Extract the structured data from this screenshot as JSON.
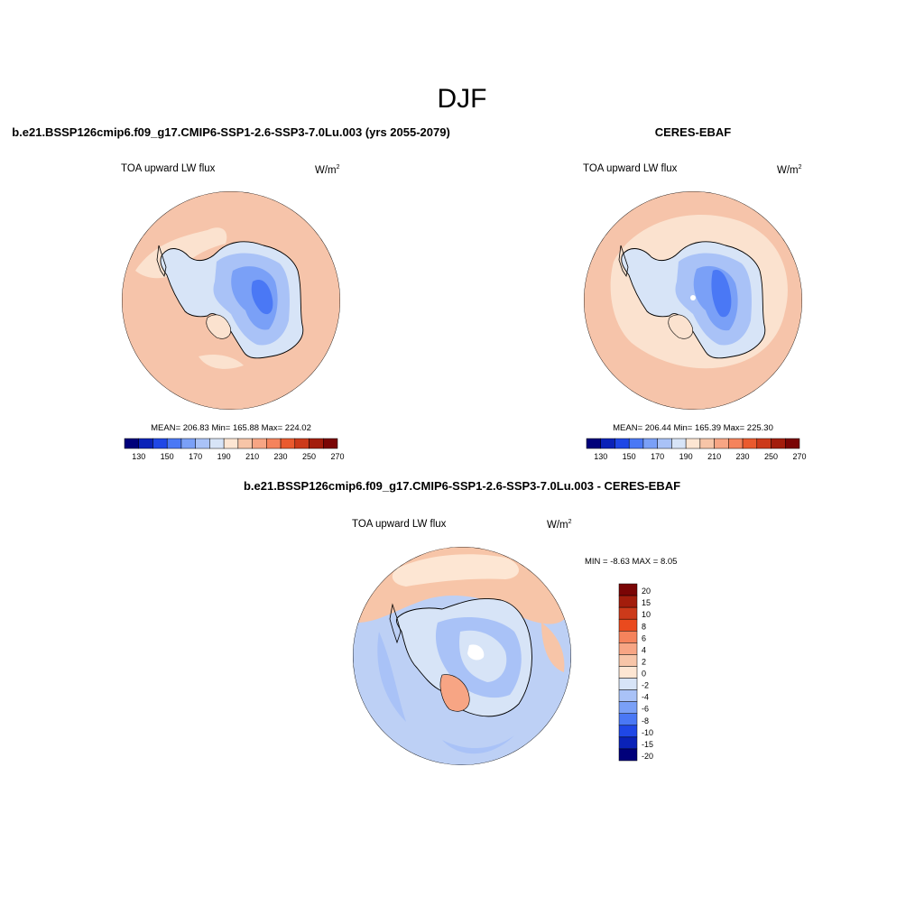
{
  "page": {
    "season_title": "DJF"
  },
  "panels": [
    {
      "id": "model",
      "header": "b.e21.BSSP126cmip6.f09_g17.CMIP6-SSP1-2.6-SSP3-7.0Lu.003 (yrs 2055-2079)",
      "variable": "TOA upward LW flux",
      "units_base": "W/m",
      "units_exp": "2",
      "stats": "MEAN= 206.83  Min= 165.88  Max= 224.02",
      "colorbar_ticks": [
        "130",
        "150",
        "170",
        "190",
        "210",
        "230",
        "250",
        "270"
      ]
    },
    {
      "id": "obs",
      "header": "CERES-EBAF",
      "variable": "TOA upward LW flux",
      "units_base": "W/m",
      "units_exp": "2",
      "stats": "MEAN= 206.44  Min= 165.39  Max= 225.30",
      "colorbar_ticks": [
        "130",
        "150",
        "170",
        "190",
        "210",
        "230",
        "250",
        "270"
      ]
    }
  ],
  "difference": {
    "header": "b.e21.BSSP126cmip6.f09_g17.CMIP6-SSP1-2.6-SSP3-7.0Lu.003 - CERES-EBAF",
    "variable": "TOA upward LW flux",
    "units_base": "W/m",
    "units_exp": "2",
    "minmax": "MIN =  -8.63 MAX =   8.05",
    "colorbar_labels": [
      "20",
      "15",
      "10",
      "8",
      "6",
      "4",
      "2",
      "0",
      "-2",
      "-4",
      "-6",
      "-8",
      "-10",
      "-15",
      "-20"
    ]
  },
  "colors": {
    "abs_scale": [
      "#00007a",
      "#0a22b8",
      "#1f47e6",
      "#4a78f5",
      "#7aa0f7",
      "#a9c2f7",
      "#d7e4f7",
      "#fde6d3",
      "#f7c5a8",
      "#f7a584",
      "#f5835c",
      "#ea5a2e",
      "#cc3a1a",
      "#a31d0c",
      "#7a0505"
    ],
    "diff_scale": [
      "#7a0505",
      "#a31d0c",
      "#cc3a1a",
      "#ea4a1e",
      "#f5835c",
      "#f7a584",
      "#f7c5a8",
      "#fde6d3",
      "#d7e4f7",
      "#a9c2f7",
      "#7aa0f7",
      "#4a78f5",
      "#1f47e6",
      "#0a22b8",
      "#00007a"
    ],
    "ocean_model": "#f6c4aa",
    "ocean_obs_inner": "#fbe2cf",
    "diff_ocean": "#bdd0f5"
  }
}
